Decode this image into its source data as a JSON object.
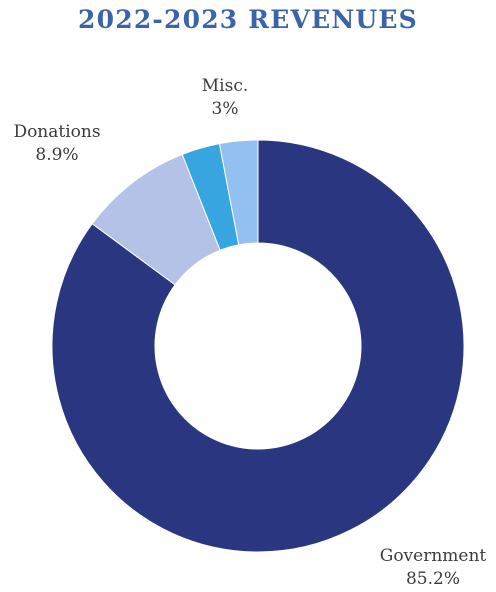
{
  "chart_data": {
    "type": "pie",
    "variant": "donut",
    "title": "2022-2023 REVENUES",
    "categories": [
      "Government",
      "Donations",
      "Misc.",
      ""
    ],
    "values": [
      85.2,
      8.9,
      3,
      3
    ],
    "value_labels": [
      "85.2%",
      "8.9%",
      "3%",
      ""
    ],
    "colors": [
      "#2b3681",
      "#b3c2e6",
      "#37a6e0",
      "#92c0f1"
    ],
    "legend": "none",
    "start": "top",
    "direction": "clockwise"
  }
}
